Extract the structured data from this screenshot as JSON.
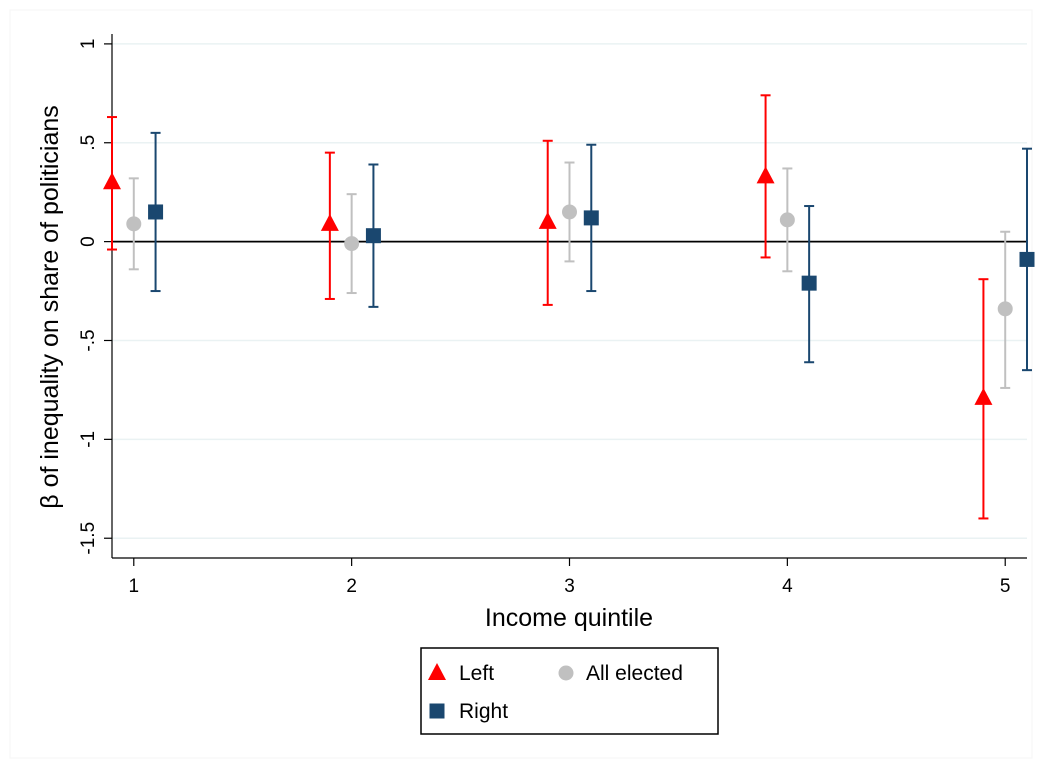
{
  "chart_data": {
    "type": "scatter",
    "xlabel": "Income quintile",
    "ylabel": "β of inequality on share of politicians",
    "categories": [
      "1",
      "2",
      "3",
      "4",
      "5"
    ],
    "ylim": [
      -1.6,
      1.05
    ],
    "yticks": [
      {
        "value": 1,
        "label": "1"
      },
      {
        "value": 0.5,
        "label": ".5"
      },
      {
        "value": 0,
        "label": "0"
      },
      {
        "value": -0.5,
        "label": "-.5"
      },
      {
        "value": -1,
        "label": "-1"
      },
      {
        "value": -1.5,
        "label": "-1.5"
      }
    ],
    "grid": true,
    "zero_line": true,
    "legend_position": "bottom",
    "series": [
      {
        "name": "Left",
        "marker": "triangle",
        "color": "#ff0000",
        "offset": -0.1,
        "points": [
          {
            "x": 1,
            "y": 0.3,
            "lo": -0.04,
            "hi": 0.63
          },
          {
            "x": 2,
            "y": 0.09,
            "lo": -0.29,
            "hi": 0.45
          },
          {
            "x": 3,
            "y": 0.1,
            "lo": -0.32,
            "hi": 0.51
          },
          {
            "x": 4,
            "y": 0.33,
            "lo": -0.08,
            "hi": 0.74
          },
          {
            "x": 5,
            "y": -0.79,
            "lo": -1.4,
            "hi": -0.19
          }
        ]
      },
      {
        "name": "All elected",
        "marker": "circle",
        "color": "#c0c0c0",
        "offset": 0,
        "points": [
          {
            "x": 1,
            "y": 0.09,
            "lo": -0.14,
            "hi": 0.32
          },
          {
            "x": 2,
            "y": -0.01,
            "lo": -0.26,
            "hi": 0.24
          },
          {
            "x": 3,
            "y": 0.15,
            "lo": -0.1,
            "hi": 0.4
          },
          {
            "x": 4,
            "y": 0.11,
            "lo": -0.15,
            "hi": 0.37
          },
          {
            "x": 5,
            "y": -0.34,
            "lo": -0.74,
            "hi": 0.05
          }
        ]
      },
      {
        "name": "Right",
        "marker": "square",
        "color": "#1a476f",
        "offset": 0.1,
        "points": [
          {
            "x": 1,
            "y": 0.15,
            "lo": -0.25,
            "hi": 0.55
          },
          {
            "x": 2,
            "y": 0.03,
            "lo": -0.33,
            "hi": 0.39
          },
          {
            "x": 3,
            "y": 0.12,
            "lo": -0.25,
            "hi": 0.49
          },
          {
            "x": 4,
            "y": -0.21,
            "lo": -0.61,
            "hi": 0.18
          },
          {
            "x": 5,
            "y": -0.09,
            "lo": -0.65,
            "hi": 0.47
          }
        ]
      }
    ],
    "colors": {
      "background": "#ffffff",
      "grid": "#eaf2f3",
      "axis": "#000000",
      "legend_border": "#000000"
    }
  }
}
